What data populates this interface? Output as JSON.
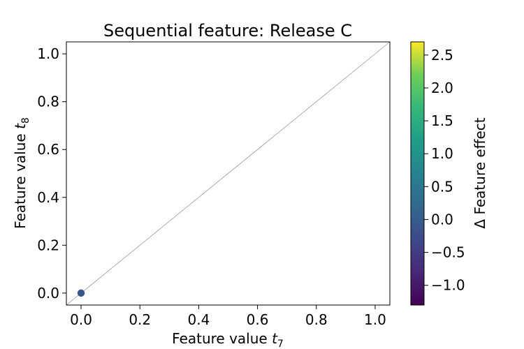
{
  "chart_data": {
    "type": "scatter",
    "title": "Sequential feature: Release C",
    "xlabel": {
      "text": "Feature value ",
      "var": "t",
      "sub": "7"
    },
    "ylabel": {
      "text": "Feature value ",
      "var": "t",
      "sub": "8"
    },
    "xlim": [
      -0.05,
      1.05
    ],
    "ylim": [
      -0.05,
      1.05
    ],
    "xticks": [
      0.0,
      0.2,
      0.4,
      0.6,
      0.8,
      1.0
    ],
    "yticks": [
      0.0,
      0.2,
      0.4,
      0.6,
      0.8,
      1.0
    ],
    "grid": false,
    "reference_line": {
      "from": [
        -0.05,
        -0.05
      ],
      "to": [
        1.05,
        1.05
      ],
      "color": "#999999"
    },
    "points": [
      {
        "x": 0.0,
        "y": 0.0,
        "c": -0.1
      }
    ],
    "colorbar": {
      "label": "Δ Feature effect",
      "colormap": "viridis",
      "range": [
        -1.3,
        2.7
      ],
      "ticks": [
        -1.0,
        -0.5,
        0.0,
        0.5,
        1.0,
        1.5,
        2.0,
        2.5
      ]
    }
  }
}
